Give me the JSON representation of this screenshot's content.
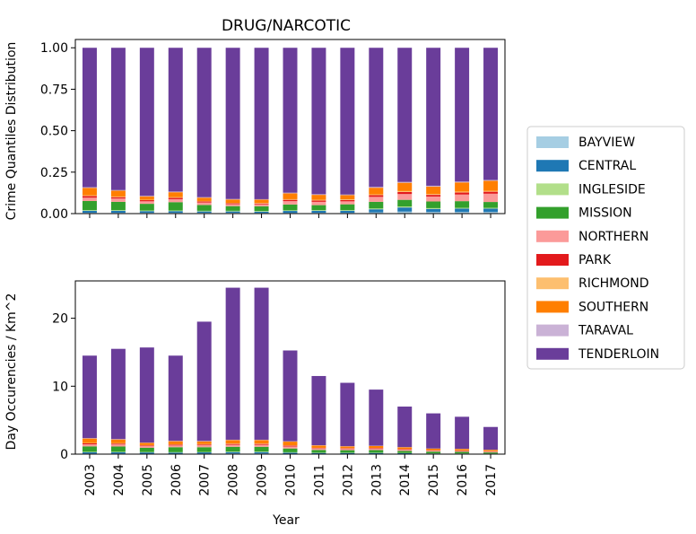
{
  "chart_data": {
    "type": "bar",
    "stacked": true,
    "title": "DRUG/NARCOTIC",
    "xlabel": "Year",
    "categories": [
      "2003",
      "2004",
      "2005",
      "2006",
      "2007",
      "2008",
      "2009",
      "2010",
      "2011",
      "2012",
      "2013",
      "2014",
      "2015",
      "2016",
      "2017"
    ],
    "legend": {
      "placement": "right",
      "entries": [
        {
          "name": "BAYVIEW",
          "color": "#a6cee3"
        },
        {
          "name": "CENTRAL",
          "color": "#1f78b4"
        },
        {
          "name": "INGLESIDE",
          "color": "#b2df8a"
        },
        {
          "name": "MISSION",
          "color": "#33a02c"
        },
        {
          "name": "NORTHERN",
          "color": "#fb9a99"
        },
        {
          "name": "PARK",
          "color": "#e31a1c"
        },
        {
          "name": "RICHMOND",
          "color": "#fdbf6f"
        },
        {
          "name": "SOUTHERN",
          "color": "#ff7f00"
        },
        {
          "name": "TARAVAL",
          "color": "#cab2d6"
        },
        {
          "name": "TENDERLOIN",
          "color": "#6a3d9a"
        }
      ]
    },
    "panels": [
      {
        "ylabel": "Crime Quantiles Distribution",
        "ylim": [
          0,
          1.05
        ],
        "yticks": [
          0.0,
          0.25,
          0.5,
          0.75,
          1.0
        ],
        "ytick_labels": [
          "0.00",
          "0.25",
          "0.50",
          "0.75",
          "1.00"
        ],
        "series": [
          {
            "name": "BAYVIEW",
            "values": [
              0.005,
              0.005,
              0.005,
              0.005,
              0.005,
              0.005,
              0.004,
              0.004,
              0.005,
              0.005,
              0.008,
              0.012,
              0.01,
              0.01,
              0.01
            ]
          },
          {
            "name": "CENTRAL",
            "values": [
              0.012,
              0.012,
              0.01,
              0.01,
              0.008,
              0.008,
              0.008,
              0.012,
              0.012,
              0.012,
              0.018,
              0.025,
              0.018,
              0.02,
              0.02
            ]
          },
          {
            "name": "INGLESIDE",
            "values": [
              0.004,
              0.004,
              0.004,
              0.004,
              0.004,
              0.004,
              0.004,
              0.004,
              0.004,
              0.004,
              0.005,
              0.006,
              0.005,
              0.005,
              0.005
            ]
          },
          {
            "name": "MISSION",
            "values": [
              0.055,
              0.05,
              0.04,
              0.05,
              0.035,
              0.028,
              0.028,
              0.035,
              0.03,
              0.035,
              0.04,
              0.04,
              0.04,
              0.04,
              0.035
            ]
          },
          {
            "name": "NORTHERN",
            "values": [
              0.02,
              0.02,
              0.015,
              0.018,
              0.015,
              0.012,
              0.012,
              0.02,
              0.02,
              0.018,
              0.03,
              0.035,
              0.03,
              0.04,
              0.05
            ]
          },
          {
            "name": "PARK",
            "values": [
              0.01,
              0.008,
              0.007,
              0.008,
              0.006,
              0.005,
              0.005,
              0.008,
              0.008,
              0.008,
              0.01,
              0.012,
              0.01,
              0.012,
              0.012
            ]
          },
          {
            "name": "RICHMOND",
            "values": [
              0.004,
              0.004,
              0.003,
              0.004,
              0.003,
              0.003,
              0.003,
              0.004,
              0.004,
              0.004,
              0.005,
              0.006,
              0.005,
              0.006,
              0.006
            ]
          },
          {
            "name": "SOUTHERN",
            "values": [
              0.045,
              0.035,
              0.02,
              0.03,
              0.02,
              0.02,
              0.02,
              0.035,
              0.03,
              0.025,
              0.04,
              0.05,
              0.045,
              0.055,
              0.06
            ]
          },
          {
            "name": "TARAVAL",
            "values": [
              0.004,
              0.004,
              0.003,
              0.004,
              0.003,
              0.003,
              0.003,
              0.004,
              0.004,
              0.004,
              0.005,
              0.005,
              0.005,
              0.005,
              0.005
            ]
          },
          {
            "name": "TENDERLOIN",
            "values": [
              0.841,
              0.858,
              0.893,
              0.867,
              0.901,
              0.912,
              0.913,
              0.874,
              0.883,
              0.885,
              0.839,
              0.809,
              0.832,
              0.807,
              0.797
            ]
          }
        ]
      },
      {
        "ylabel": "Day Occurencies / Km^2",
        "ylim": [
          0,
          25.5
        ],
        "yticks": [
          0,
          10,
          20
        ],
        "ytick_labels": [
          "0",
          "10",
          "20"
        ],
        "series": [
          {
            "name": "BAYVIEW",
            "values": [
              0.08,
              0.08,
              0.07,
              0.07,
              0.08,
              0.1,
              0.1,
              0.06,
              0.05,
              0.05,
              0.05,
              0.04,
              0.03,
              0.03,
              0.02
            ]
          },
          {
            "name": "CENTRAL",
            "values": [
              0.2,
              0.2,
              0.18,
              0.16,
              0.18,
              0.2,
              0.2,
              0.16,
              0.12,
              0.12,
              0.12,
              0.1,
              0.07,
              0.06,
              0.05
            ]
          },
          {
            "name": "INGLESIDE",
            "values": [
              0.06,
              0.06,
              0.06,
              0.06,
              0.06,
              0.08,
              0.08,
              0.06,
              0.04,
              0.04,
              0.04,
              0.03,
              0.02,
              0.02,
              0.02
            ]
          },
          {
            "name": "MISSION",
            "values": [
              0.8,
              0.78,
              0.62,
              0.73,
              0.7,
              0.7,
              0.7,
              0.55,
              0.4,
              0.37,
              0.38,
              0.3,
              0.25,
              0.22,
              0.16
            ]
          },
          {
            "name": "NORTHERN",
            "values": [
              0.3,
              0.3,
              0.24,
              0.26,
              0.28,
              0.3,
              0.3,
              0.3,
              0.2,
              0.18,
              0.2,
              0.18,
              0.15,
              0.14,
              0.13
            ]
          },
          {
            "name": "PARK",
            "values": [
              0.15,
              0.13,
              0.11,
              0.12,
              0.12,
              0.12,
              0.12,
              0.12,
              0.08,
              0.08,
              0.08,
              0.07,
              0.05,
              0.05,
              0.04
            ]
          },
          {
            "name": "RICHMOND",
            "values": [
              0.06,
              0.06,
              0.05,
              0.06,
              0.06,
              0.06,
              0.06,
              0.06,
              0.04,
              0.04,
              0.04,
              0.03,
              0.02,
              0.02,
              0.02
            ]
          },
          {
            "name": "SOUTHERN",
            "values": [
              0.65,
              0.55,
              0.32,
              0.44,
              0.4,
              0.5,
              0.5,
              0.53,
              0.35,
              0.26,
              0.29,
              0.26,
              0.22,
              0.22,
              0.19
            ]
          },
          {
            "name": "TARAVAL",
            "values": [
              0.06,
              0.06,
              0.05,
              0.06,
              0.06,
              0.06,
              0.06,
              0.06,
              0.04,
              0.04,
              0.04,
              0.03,
              0.02,
              0.02,
              0.02
            ]
          },
          {
            "name": "TENDERLOIN",
            "values": [
              12.14,
              13.28,
              14.0,
              12.54,
              17.56,
              22.38,
              22.38,
              13.36,
              10.18,
              9.32,
              8.26,
              5.96,
              5.17,
              4.72,
              3.35
            ]
          }
        ]
      }
    ]
  }
}
